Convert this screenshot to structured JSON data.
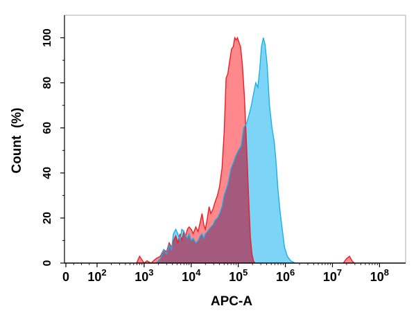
{
  "chart_data": {
    "type": "area",
    "title": "",
    "xlabel": "APC-A",
    "ylabel": "Count  (%)",
    "x_scale": "biexponential",
    "xlim": [
      0,
      100000000
    ],
    "ylim": [
      0,
      110
    ],
    "grid": false,
    "legend": "none",
    "x_ticks": [
      {
        "base": "0",
        "exp": ""
      },
      {
        "base": "10",
        "exp": "2"
      },
      {
        "base": "10",
        "exp": "3"
      },
      {
        "base": "10",
        "exp": "4"
      },
      {
        "base": "10",
        "exp": "5"
      },
      {
        "base": "10",
        "exp": "6"
      },
      {
        "base": "10",
        "exp": "7"
      },
      {
        "base": "10",
        "exp": "8"
      }
    ],
    "y_ticks": [
      "0",
      "20",
      "40",
      "60",
      "80",
      "100"
    ],
    "series": [
      {
        "fill": "#ff7b7f",
        "stroke": "#ee1c25",
        "points": [
          [
            690,
            0
          ],
          [
            800,
            3
          ],
          [
            1000,
            0
          ],
          [
            1150,
            1
          ],
          [
            1400,
            0
          ],
          [
            1800,
            2
          ],
          [
            2200,
            3
          ],
          [
            2600,
            6
          ],
          [
            3000,
            5
          ],
          [
            3400,
            9
          ],
          [
            3800,
            7
          ],
          [
            4200,
            10
          ],
          [
            4700,
            12
          ],
          [
            5200,
            9
          ],
          [
            5800,
            13
          ],
          [
            6300,
            10
          ],
          [
            7000,
            14
          ],
          [
            7600,
            12
          ],
          [
            8300,
            15
          ],
          [
            9000,
            16
          ],
          [
            10000,
            15
          ],
          [
            11000,
            13
          ],
          [
            12500,
            16
          ],
          [
            14000,
            14
          ],
          [
            15500,
            18
          ],
          [
            17000,
            22
          ],
          [
            18500,
            17
          ],
          [
            20000,
            15
          ],
          [
            22000,
            20
          ],
          [
            24000,
            25
          ],
          [
            26000,
            22
          ],
          [
            29000,
            24
          ],
          [
            32000,
            27
          ],
          [
            36000,
            30
          ],
          [
            40000,
            34
          ],
          [
            45000,
            42
          ],
          [
            50000,
            58
          ],
          [
            55000,
            82
          ],
          [
            60000,
            84
          ],
          [
            66000,
            90
          ],
          [
            72000,
            95
          ],
          [
            78000,
            96
          ],
          [
            84000,
            100
          ],
          [
            90000,
            99
          ],
          [
            96000,
            100
          ],
          [
            103000,
            98
          ],
          [
            112000,
            96
          ],
          [
            122000,
            88
          ],
          [
            135000,
            74
          ],
          [
            150000,
            52
          ],
          [
            165000,
            30
          ],
          [
            180000,
            12
          ],
          [
            195000,
            4
          ],
          [
            210000,
            1
          ],
          [
            225000,
            0
          ]
        ]
      },
      {
        "fill": "#6ecff6",
        "stroke": "#1cb0e6",
        "points": [
          [
            1800,
            0
          ],
          [
            2200,
            2
          ],
          [
            2600,
            6
          ],
          [
            3000,
            4
          ],
          [
            3400,
            8
          ],
          [
            3800,
            6
          ],
          [
            4200,
            13
          ],
          [
            4700,
            15
          ],
          [
            5200,
            13
          ],
          [
            5800,
            10
          ],
          [
            6300,
            15
          ],
          [
            7000,
            14
          ],
          [
            7600,
            12
          ],
          [
            8300,
            11
          ],
          [
            9000,
            13
          ],
          [
            10000,
            10
          ],
          [
            11000,
            11
          ],
          [
            12500,
            9
          ],
          [
            14000,
            10
          ],
          [
            15500,
            12
          ],
          [
            17000,
            13
          ],
          [
            18500,
            11
          ],
          [
            20000,
            13
          ],
          [
            22000,
            14
          ],
          [
            24000,
            15
          ],
          [
            26000,
            16
          ],
          [
            29000,
            17
          ],
          [
            32000,
            19
          ],
          [
            36000,
            20
          ],
          [
            40000,
            22
          ],
          [
            45000,
            25
          ],
          [
            50000,
            30
          ],
          [
            60000,
            35
          ],
          [
            70000,
            42
          ],
          [
            80000,
            45
          ],
          [
            90000,
            48
          ],
          [
            100000,
            50
          ],
          [
            115000,
            52
          ],
          [
            130000,
            60
          ],
          [
            150000,
            62
          ],
          [
            170000,
            66
          ],
          [
            190000,
            70
          ],
          [
            210000,
            75
          ],
          [
            235000,
            80
          ],
          [
            260000,
            78
          ],
          [
            285000,
            86
          ],
          [
            310000,
            96
          ],
          [
            340000,
            100
          ],
          [
            370000,
            97
          ],
          [
            410000,
            88
          ],
          [
            460000,
            70
          ],
          [
            520000,
            60
          ],
          [
            580000,
            54
          ],
          [
            640000,
            44
          ],
          [
            700000,
            32
          ],
          [
            780000,
            22
          ],
          [
            870000,
            14
          ],
          [
            960000,
            7
          ],
          [
            1100000,
            3
          ],
          [
            1300000,
            1
          ],
          [
            1600000,
            0
          ]
        ]
      },
      {
        "fill": "#ff7b7f",
        "stroke": "#ee1c25",
        "points": [
          [
            17000000,
            0
          ],
          [
            20000000,
            2
          ],
          [
            23000000,
            3
          ],
          [
            26000000,
            1
          ],
          [
            29000000,
            0
          ]
        ]
      }
    ],
    "overlap_color": "#a35a7c"
  }
}
